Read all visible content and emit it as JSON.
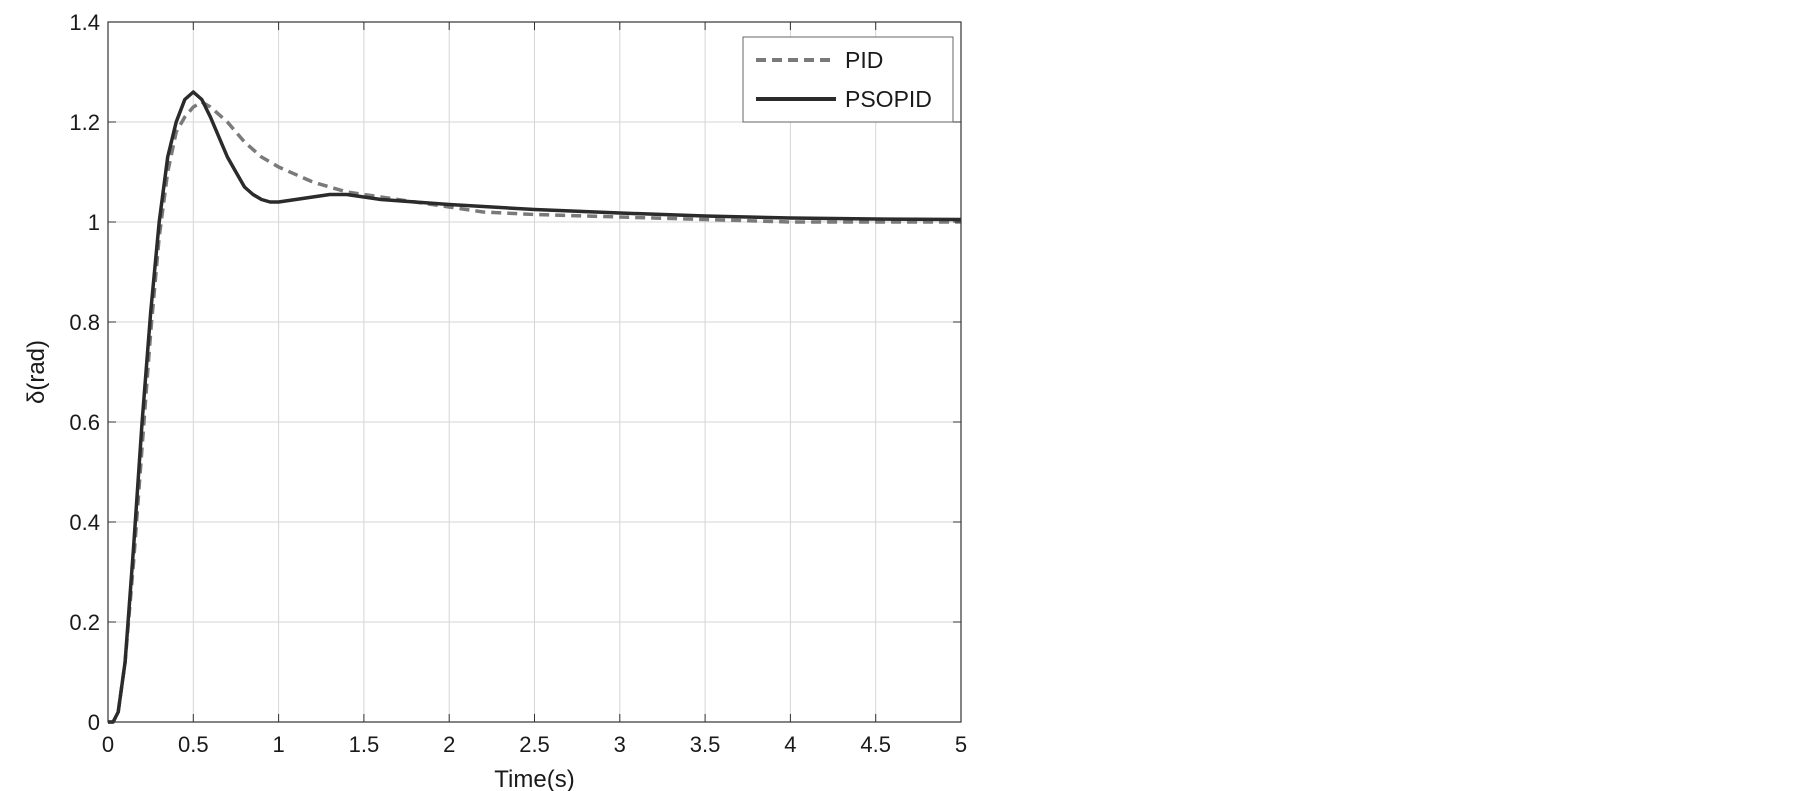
{
  "chart_data": {
    "type": "line",
    "title": "",
    "xlabel": "Time(s)",
    "ylabel": "δ(rad)",
    "xlim": [
      0,
      5
    ],
    "ylim": [
      0,
      1.4
    ],
    "xticks": [
      0,
      0.5,
      1,
      1.5,
      2,
      2.5,
      3,
      3.5,
      4,
      4.5,
      5
    ],
    "xtick_labels": [
      "0",
      "0.5",
      "1",
      "1.5",
      "2",
      "2.5",
      "3",
      "3.5",
      "4",
      "4.5",
      "5"
    ],
    "yticks": [
      0,
      0.2,
      0.4,
      0.6,
      0.8,
      1.0,
      1.2,
      1.4
    ],
    "ytick_labels": [
      "0",
      "0.2",
      "0.4",
      "0.6",
      "0.8",
      "1",
      "1.2",
      "1.4"
    ],
    "grid": true,
    "legend_position": "top-right",
    "series": [
      {
        "name": "PID",
        "style": "dashed",
        "color": "#7a7a7a",
        "x": [
          0,
          0.03,
          0.06,
          0.1,
          0.15,
          0.2,
          0.25,
          0.3,
          0.35,
          0.4,
          0.45,
          0.5,
          0.55,
          0.6,
          0.7,
          0.8,
          0.9,
          1.0,
          1.2,
          1.4,
          1.6,
          1.8,
          2.0,
          2.2,
          2.5,
          3.0,
          3.5,
          4.0,
          4.5,
          5.0
        ],
        "values": [
          0,
          0,
          0.02,
          0.12,
          0.32,
          0.55,
          0.78,
          0.97,
          1.1,
          1.18,
          1.21,
          1.23,
          1.24,
          1.23,
          1.2,
          1.16,
          1.13,
          1.11,
          1.08,
          1.06,
          1.05,
          1.04,
          1.03,
          1.02,
          1.015,
          1.01,
          1.005,
          1.0,
          1.0,
          1.0
        ]
      },
      {
        "name": "PSOPID",
        "style": "solid",
        "color": "#2b2b2b",
        "x": [
          0,
          0.03,
          0.06,
          0.1,
          0.15,
          0.2,
          0.25,
          0.3,
          0.35,
          0.4,
          0.45,
          0.5,
          0.55,
          0.6,
          0.65,
          0.7,
          0.75,
          0.8,
          0.85,
          0.9,
          0.95,
          1.0,
          1.1,
          1.2,
          1.3,
          1.4,
          1.5,
          1.6,
          1.8,
          2.0,
          2.5,
          3.0,
          3.5,
          4.0,
          4.5,
          5.0
        ],
        "values": [
          0,
          0,
          0.02,
          0.12,
          0.35,
          0.6,
          0.82,
          1.0,
          1.13,
          1.2,
          1.245,
          1.26,
          1.245,
          1.21,
          1.17,
          1.13,
          1.1,
          1.07,
          1.055,
          1.045,
          1.04,
          1.04,
          1.045,
          1.05,
          1.055,
          1.055,
          1.05,
          1.045,
          1.04,
          1.035,
          1.025,
          1.018,
          1.012,
          1.008,
          1.006,
          1.005
        ]
      }
    ]
  }
}
